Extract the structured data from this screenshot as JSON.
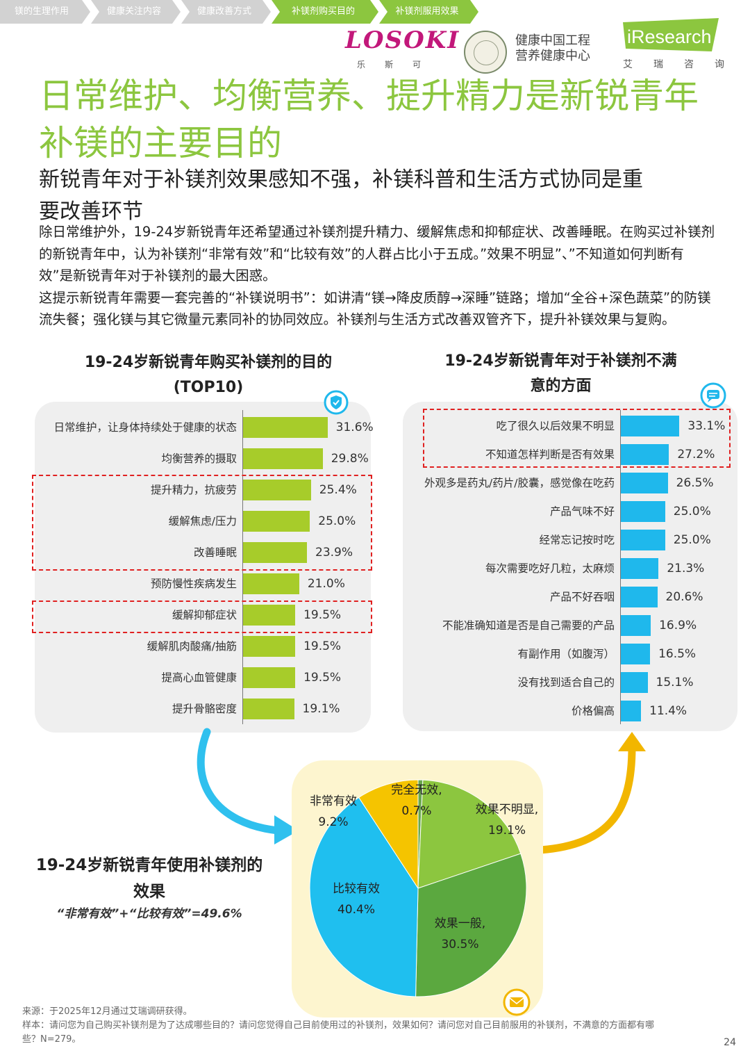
{
  "nav": {
    "items": [
      {
        "label": "镁的生理作用",
        "color": "#d2d2d2"
      },
      {
        "label": "健康关注内容",
        "color": "#d2d2d2"
      },
      {
        "label": "健康改善方式",
        "color": "#d2d2d2"
      },
      {
        "label": "补镁剂购买目的",
        "color": "#8cc63f"
      },
      {
        "label": "补镁剂服用效果",
        "color": "#8cc63f"
      }
    ]
  },
  "logos": {
    "losoki": "LOSOKI",
    "losoki_sub": "乐斯可",
    "center_line1": "健康中国工程",
    "center_line2": "营养健康中心",
    "iresearch": "iResearch",
    "iresearch_sub": "艾瑞咨询"
  },
  "title": {
    "line1": "日常维护、均衡营养、提升精力是新锐青年",
    "line2": "补镁的主要目的"
  },
  "subtitle": {
    "line1": "新锐青年对于补镁剂效果感知不强，补镁科普和生活方式协同是重",
    "line2": "要改善环节"
  },
  "body": {
    "p1": "除日常维护外，19-24岁新锐青年还希望通过补镁剂提升精力、缓解焦虑和抑郁症状、改善睡眠。在购买过补镁剂的新锐青年中，认为补镁剂“非常有效”和“比较有效”的人群占比小于五成。”效果不明显”、”不知道如何判断有效”是新锐青年对于补镁剂的最大困惑。",
    "p2": "这提示新锐青年需要一套完善的“补镁说明书”：如讲清“镁→降皮质醇→深睡”链路；增加“全谷+深色蔬菜”的防镁流失餐；强化镁与其它微量元素同补的协同效应。补镁剂与生活方式改善双管齐下，提升补镁效果与复购。"
  },
  "chart_data": [
    {
      "type": "bar",
      "orientation": "horizontal",
      "title": "19-24岁新锐青年购买补镁剂的目的 (TOP10)",
      "color": "#a7cc2a",
      "categories": [
        "日常维护，让身体持续处于健康的状态",
        "均衡营养的摄取",
        "提升精力，抗疲劳",
        "缓解焦虑/压力",
        "改善睡眠",
        "预防慢性疾病发生",
        "缓解抑郁症状",
        "缓解肌肉酸痛/抽筋",
        "提高心血管健康",
        "提升骨骼密度"
      ],
      "values": [
        31.6,
        29.8,
        25.4,
        25.0,
        23.9,
        21.0,
        19.5,
        19.5,
        19.5,
        19.1
      ],
      "labels": [
        "31.6%",
        "29.8%",
        "25.4%",
        "25.0%",
        "23.9%",
        "21.0%",
        "19.5%",
        "19.5%",
        "19.5%",
        "19.1%"
      ],
      "highlight_groups": [
        [
          2,
          4
        ],
        [
          6,
          6
        ]
      ]
    },
    {
      "type": "bar",
      "orientation": "horizontal",
      "title": "19-24岁新锐青年对于补镁剂不满意的方面",
      "color": "#1fb8ec",
      "categories": [
        "吃了很久以后效果不明显",
        "不知道怎样判断是否有效果",
        "外观多是药丸/药片/胶囊，感觉像在吃药",
        "产品气味不好",
        "经常忘记按时吃",
        "每次需要吃好几粒，太麻烦",
        "产品不好吞咽",
        "不能准确知道是否是自己需要的产品",
        "有副作用（如腹泻）",
        "没有找到适合自己的",
        "价格偏高"
      ],
      "values": [
        33.1,
        27.2,
        26.5,
        25.0,
        25.0,
        21.3,
        20.6,
        16.9,
        16.5,
        15.1,
        11.4
      ],
      "labels": [
        "33.1%",
        "27.2%",
        "26.5%",
        "25.0%",
        "25.0%",
        "21.3%",
        "20.6%",
        "16.9%",
        "16.5%",
        "15.1%",
        "11.4%"
      ],
      "highlight_groups": [
        [
          0,
          1
        ]
      ]
    },
    {
      "type": "pie",
      "title": "19-24岁新锐青年使用补镁剂的效果",
      "note": "“非常有效”+“比较有效”=49.6%",
      "slices": [
        {
          "name": "完全无效,",
          "value": 0.7,
          "label": "0.7%",
          "color": "#6aa84f"
        },
        {
          "name": "效果不明显,",
          "value": 19.1,
          "label": "19.1%",
          "color": "#8cc63f"
        },
        {
          "name": "效果一般,",
          "value": 30.5,
          "label": "30.5%",
          "color": "#5ba83f"
        },
        {
          "name": "比较有效",
          "value": 40.4,
          "label": "40.4%",
          "color": "#1fbfef"
        },
        {
          "name": "非常有效",
          "value": 9.2,
          "label": "9.2%",
          "color": "#f5c400"
        }
      ]
    }
  ],
  "chart_titles": {
    "left_line1": "19-24岁新锐青年购买补镁剂的目的",
    "left_line2": "(TOP10)",
    "right_line1": "19-24岁新锐青年对于补镁剂不满",
    "right_line2": "意的方面",
    "pie_line1": "19-24岁新锐青年使用补镁剂的",
    "pie_line2": "效果",
    "pie_note": "“非常有效”+“比较有效”=49.6%"
  },
  "footer": {
    "source": "来源：于2025年12月通过艾瑞调研获得。",
    "sample_line1": "样本：请问您为自己购买补镁剂是为了达成哪些目的？请问您觉得自己目前使用过的补镁剂，效果如何？请问您对自己目前服用的补镁剂，不满意的方面都有哪",
    "sample_line2": "些？N=279。",
    "page": "24"
  },
  "colors": {
    "accent_green": "#8cc63f",
    "bar_green": "#a7cc2a",
    "bar_blue": "#1fb8ec",
    "highlight_red": "#e02020",
    "arrow_blue": "#2fc0ee",
    "arrow_yellow": "#f2b600"
  }
}
